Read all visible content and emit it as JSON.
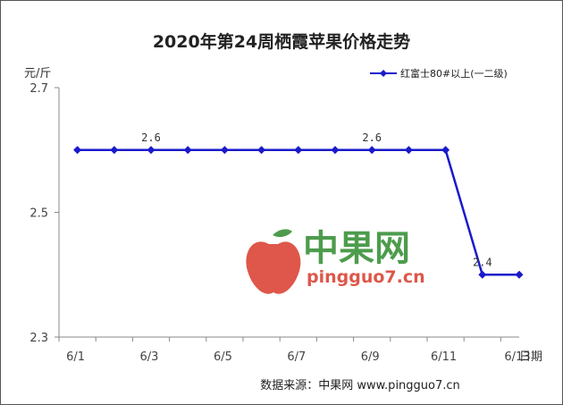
{
  "chart_data": {
    "type": "line",
    "title": "2020年第24周栖霞苹果价格走势",
    "ylabel": "元/斤",
    "xlabel": "日期",
    "ylim": [
      2.3,
      2.7
    ],
    "yticks": [
      "2.3",
      "2.5",
      "2.7"
    ],
    "xticks": [
      "6/1",
      "6/3",
      "6/5",
      "6/7",
      "6/9",
      "6/11",
      "6/13"
    ],
    "x": [
      "6/1",
      "6/2",
      "6/3",
      "6/4",
      "6/5",
      "6/6",
      "6/7",
      "6/8",
      "6/9",
      "6/10",
      "6/11",
      "6/12",
      "6/13"
    ],
    "series": [
      {
        "name": "红富士80#以上(一二级)",
        "color": "#1a1acc",
        "values": [
          2.6,
          2.6,
          2.6,
          2.6,
          2.6,
          2.6,
          2.6,
          2.6,
          2.6,
          2.6,
          2.6,
          2.4,
          2.4
        ]
      }
    ],
    "data_labels": [
      {
        "x": "6/3",
        "text": "2.6"
      },
      {
        "x": "6/9",
        "text": "2.6"
      },
      {
        "x": "6/12",
        "text": "2.4"
      }
    ],
    "legend_position": "top-right",
    "grid": false
  },
  "source": "数据来源：中果网 www.pingguo7.cn",
  "watermark": {
    "name": "中果网",
    "url": "pingguo7.cn"
  }
}
